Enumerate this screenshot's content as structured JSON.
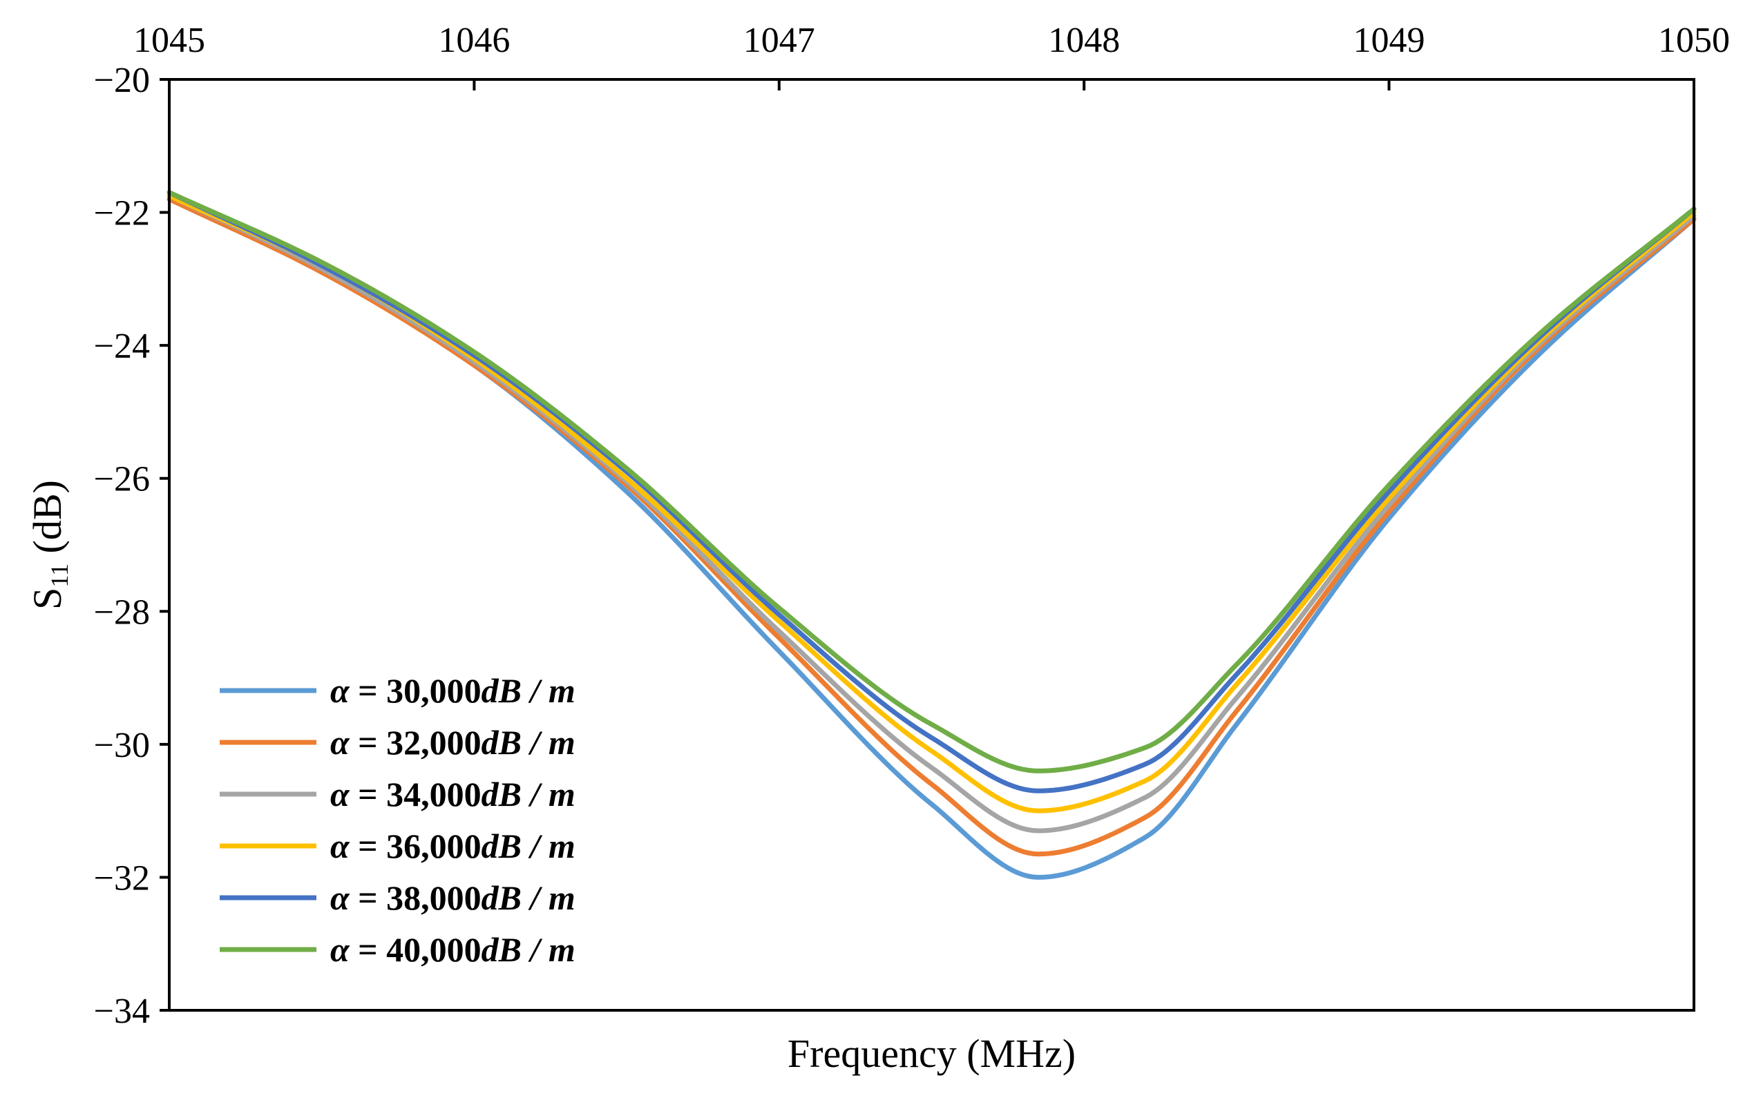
{
  "chart_data": {
    "type": "line",
    "title": "",
    "xlabel": "Frequency (MHz)",
    "ylabel_main": "S",
    "ylabel_sub": "11",
    "ylabel_unit": " (dB)",
    "xlim": [
      1045,
      1050
    ],
    "ylim": [
      -34,
      -20
    ],
    "xticks": [
      1045,
      1046,
      1047,
      1048,
      1049,
      1050
    ],
    "xtick_labels": [
      "1045",
      "1046",
      "1047",
      "1048",
      "1049",
      "1050"
    ],
    "yticks": [
      -20,
      -22,
      -24,
      -26,
      -28,
      -30,
      -32,
      -34
    ],
    "ytick_labels": [
      "−20",
      "−22",
      "−24",
      "−26",
      "−28",
      "−30",
      "−32",
      "−34"
    ],
    "x_axis_position": "top",
    "grid": false,
    "legend_position": "bottom-left",
    "series": [
      {
        "name": "α = 30,000dB / m",
        "legend_alpha": "α",
        "legend_eq": " = ",
        "legend_value": "30,000",
        "legend_unit": "dB / m",
        "color": "#5b9bd5",
        "x": [
          1045,
          1045.5,
          1046,
          1046.5,
          1047,
          1047.5,
          1047.85,
          1048.2,
          1048.5,
          1049,
          1049.5,
          1050
        ],
        "y": [
          -21.8,
          -22.9,
          -24.3,
          -26.2,
          -28.6,
          -30.9,
          -32.0,
          -31.4,
          -29.7,
          -26.6,
          -24.1,
          -22.1
        ]
      },
      {
        "name": "α = 32,000dB / m",
        "legend_alpha": "α",
        "legend_eq": " = ",
        "legend_value": "32,000",
        "legend_unit": "dB / m",
        "color": "#ed7d31",
        "x": [
          1045,
          1045.5,
          1046,
          1046.5,
          1047,
          1047.5,
          1047.85,
          1048.2,
          1048.5,
          1049,
          1049.5,
          1050
        ],
        "y": [
          -21.8,
          -22.9,
          -24.3,
          -26.1,
          -28.4,
          -30.6,
          -31.65,
          -31.1,
          -29.5,
          -26.5,
          -24.0,
          -22.1
        ]
      },
      {
        "name": "α = 34,000dB / m",
        "legend_alpha": "α",
        "legend_eq": " = ",
        "legend_value": "34,000",
        "legend_unit": "dB / m",
        "color": "#a5a5a5",
        "x": [
          1045,
          1045.5,
          1046,
          1046.5,
          1047,
          1047.5,
          1047.85,
          1048.2,
          1048.5,
          1049,
          1049.5,
          1050
        ],
        "y": [
          -21.75,
          -22.85,
          -24.25,
          -26.05,
          -28.3,
          -30.35,
          -31.3,
          -30.8,
          -29.3,
          -26.4,
          -23.95,
          -22.05
        ]
      },
      {
        "name": "α = 36,000dB / m",
        "legend_alpha": "α",
        "legend_eq": " = ",
        "legend_value": "36,000",
        "legend_unit": "dB / m",
        "color": "#ffc000",
        "x": [
          1045,
          1045.5,
          1046,
          1046.5,
          1047,
          1047.5,
          1047.85,
          1048.2,
          1048.5,
          1049,
          1049.5,
          1050
        ],
        "y": [
          -21.75,
          -22.8,
          -24.2,
          -26.0,
          -28.15,
          -30.1,
          -31.0,
          -30.55,
          -29.1,
          -26.3,
          -23.9,
          -22.0
        ]
      },
      {
        "name": "α = 38,000dB / m",
        "legend_alpha": "α",
        "legend_eq": " = ",
        "legend_value": "38,000",
        "legend_unit": "dB / m",
        "color": "#4472c4",
        "x": [
          1045,
          1045.5,
          1046,
          1046.5,
          1047,
          1047.5,
          1047.85,
          1048.2,
          1048.5,
          1049,
          1049.5,
          1050
        ],
        "y": [
          -21.7,
          -22.8,
          -24.15,
          -25.9,
          -28.05,
          -29.9,
          -30.7,
          -30.3,
          -28.95,
          -26.2,
          -23.85,
          -21.95
        ]
      },
      {
        "name": "α = 40,000dB / m",
        "legend_alpha": "α",
        "legend_eq": " = ",
        "legend_value": "40,000",
        "legend_unit": "dB / m",
        "color": "#70ad47",
        "x": [
          1045,
          1045.5,
          1046,
          1046.5,
          1047,
          1047.5,
          1047.85,
          1048.2,
          1048.5,
          1049,
          1049.5,
          1050
        ],
        "y": [
          -21.7,
          -22.75,
          -24.1,
          -25.85,
          -27.95,
          -29.7,
          -30.4,
          -30.05,
          -28.8,
          -26.1,
          -23.8,
          -21.95
        ]
      }
    ]
  }
}
